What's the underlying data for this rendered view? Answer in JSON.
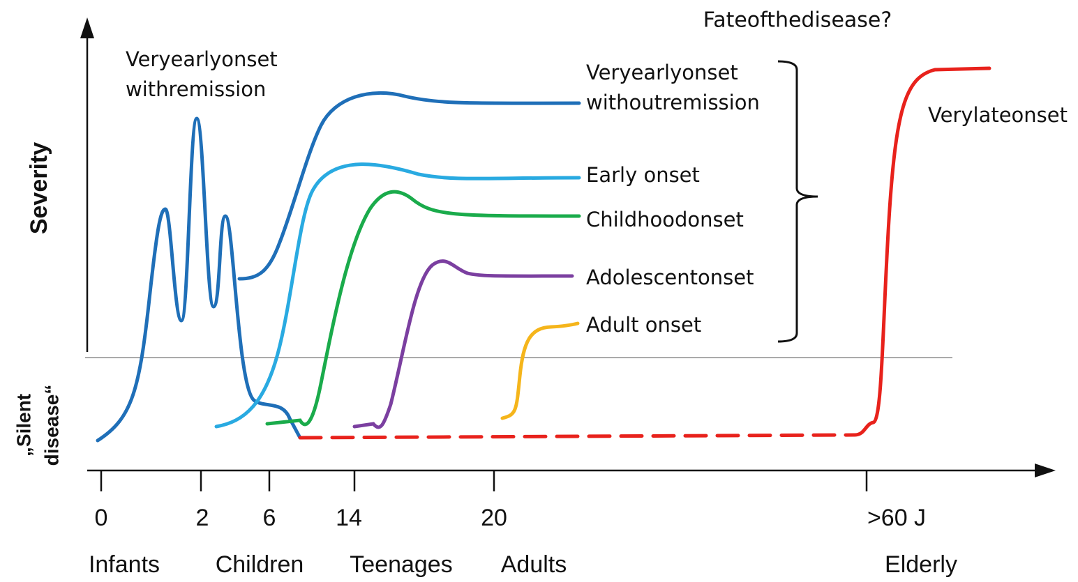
{
  "title": "Fateofthedisease?",
  "y_axis_label": "Severity",
  "silent_label": [
    "„Silent",
    "disease“"
  ],
  "x_ticks": [
    "0",
    "2",
    "6",
    "14",
    "20",
    ">60 J"
  ],
  "age_groups": [
    "Infants",
    "Children",
    "Teenages",
    "Adults",
    "Elderly"
  ],
  "curves": [
    {
      "label": [
        "Veryearlyonset",
        "withremission"
      ]
    },
    {
      "label": [
        "Veryearlyonset",
        "withoutremission"
      ]
    },
    {
      "label": [
        "Early onset"
      ]
    },
    {
      "label": [
        "Childhoodonset"
      ]
    },
    {
      "label": [
        "Adolescentonset"
      ]
    },
    {
      "label": [
        "Adult onset"
      ]
    },
    {
      "label": [
        "Verylateonset"
      ]
    }
  ]
}
